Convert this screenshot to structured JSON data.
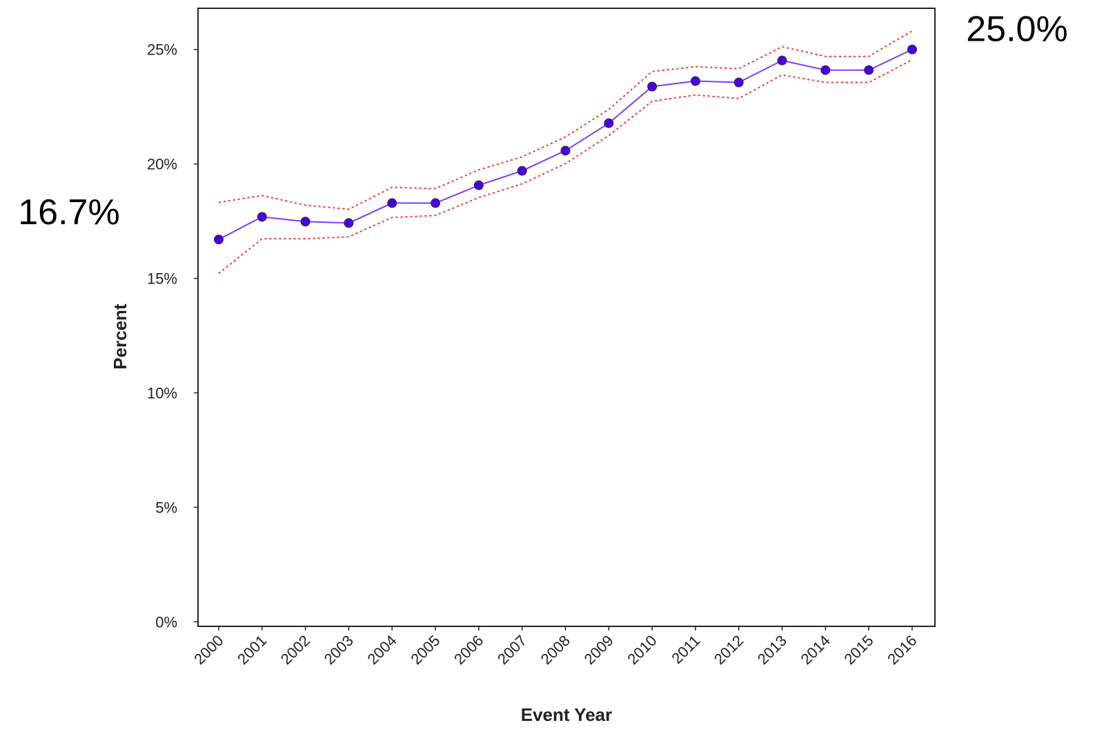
{
  "chart_data": {
    "type": "line",
    "x_label": "Event Year",
    "y_label": "Percent",
    "categories": [
      "2000",
      "2001",
      "2002",
      "2003",
      "2004",
      "2005",
      "2006",
      "2007",
      "2008",
      "2009",
      "2010",
      "2011",
      "2012",
      "2013",
      "2014",
      "2015",
      "2016"
    ],
    "series": [
      {
        "color": "#7b3cff",
        "marker_color": "#4a00e0",
        "style": "solid",
        "markers": true,
        "values": [
          16.7,
          17.69,
          17.48,
          17.42,
          18.29,
          18.29,
          19.07,
          19.7,
          20.58,
          21.78,
          23.38,
          23.62,
          23.56,
          24.52,
          24.1,
          24.1,
          25.0
        ],
        "value_labels": [
          "16.7%",
          null,
          null,
          null,
          null,
          null,
          null,
          null,
          null,
          null,
          null,
          null,
          null,
          null,
          null,
          null,
          "25.0%"
        ]
      },
      {
        "color": "#ff2a2a",
        "style": "dotted",
        "markers": false,
        "values": [
          18.32,
          18.62,
          18.2,
          18.02,
          18.98,
          18.92,
          19.74,
          20.31,
          21.18,
          22.38,
          24.04,
          24.25,
          24.16,
          25.12,
          24.7,
          24.7,
          25.81
        ]
      },
      {
        "color": "#ff2a2a",
        "style": "dotted",
        "markers": false,
        "values": [
          15.22,
          16.73,
          16.73,
          16.82,
          17.66,
          17.75,
          18.53,
          19.13,
          20.01,
          21.24,
          22.74,
          23.01,
          22.86,
          23.89,
          23.56,
          23.56,
          24.55
        ]
      }
    ],
    "ylim": [
      -0.2,
      26.8
    ],
    "yticks": [
      {
        "value": 0,
        "label": "0%"
      },
      {
        "value": 5,
        "label": "5%"
      },
      {
        "value": 10,
        "label": "10%"
      },
      {
        "value": 15,
        "label": "15%"
      },
      {
        "value": 20,
        "label": "20%"
      },
      {
        "value": 25,
        "label": "25%"
      }
    ],
    "grid": false
  }
}
